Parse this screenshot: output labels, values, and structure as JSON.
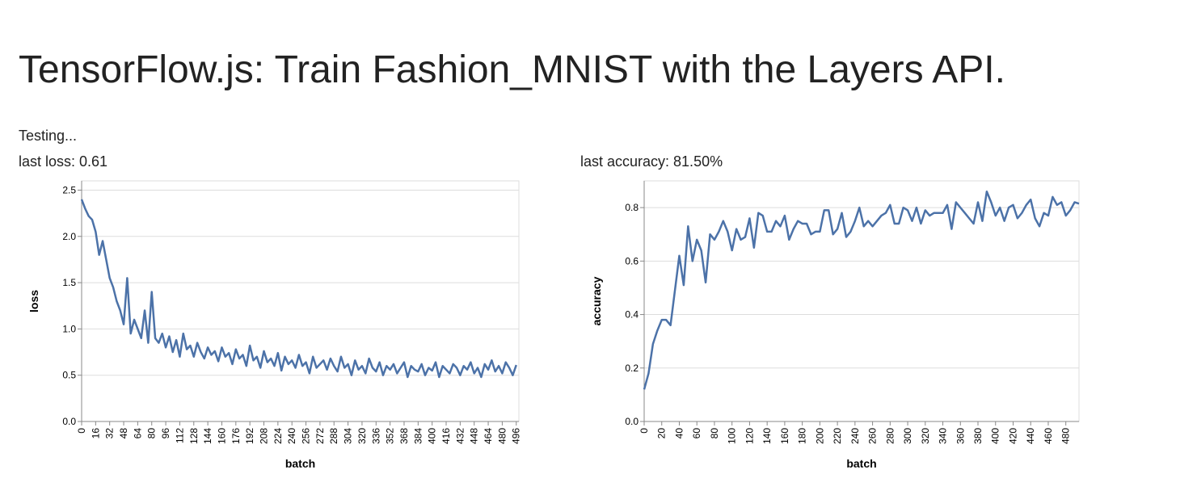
{
  "title": "TensorFlow.js: Train Fashion_MNIST with the Layers API.",
  "status": "Testing...",
  "chart_data": [
    {
      "type": "line",
      "caption": "last loss: 0.61",
      "xlabel": "batch",
      "ylabel": "loss",
      "color": "#4c72a8",
      "grid": true,
      "xlim": [
        0,
        499
      ],
      "ylim": [
        0,
        2.6
      ],
      "xticks": [
        0,
        16,
        32,
        48,
        64,
        80,
        96,
        112,
        128,
        144,
        160,
        176,
        192,
        208,
        224,
        240,
        256,
        272,
        288,
        304,
        320,
        336,
        352,
        368,
        384,
        400,
        416,
        432,
        448,
        464,
        480,
        496
      ],
      "yticks": [
        {
          "value": 0,
          "label": "0.0"
        },
        0.5,
        {
          "value": 1,
          "label": "1.0"
        },
        1.5,
        {
          "value": 2,
          "label": "2.0"
        },
        2.5
      ],
      "x": [
        0,
        4,
        8,
        12,
        16,
        20,
        24,
        28,
        32,
        36,
        40,
        44,
        48,
        52,
        56,
        60,
        64,
        68,
        72,
        76,
        80,
        84,
        88,
        92,
        96,
        100,
        104,
        108,
        112,
        116,
        120,
        124,
        128,
        132,
        136,
        140,
        144,
        148,
        152,
        156,
        160,
        164,
        168,
        172,
        176,
        180,
        184,
        188,
        192,
        196,
        200,
        204,
        208,
        212,
        216,
        220,
        224,
        228,
        232,
        236,
        240,
        244,
        248,
        252,
        256,
        260,
        264,
        268,
        272,
        276,
        280,
        284,
        288,
        292,
        296,
        300,
        304,
        308,
        312,
        316,
        320,
        324,
        328,
        332,
        336,
        340,
        344,
        348,
        352,
        356,
        360,
        364,
        368,
        372,
        376,
        380,
        384,
        388,
        392,
        396,
        400,
        404,
        408,
        412,
        416,
        420,
        424,
        428,
        432,
        436,
        440,
        444,
        448,
        452,
        456,
        460,
        464,
        468,
        472,
        476,
        480,
        484,
        488,
        492,
        496
      ],
      "values": [
        2.4,
        2.3,
        2.22,
        2.18,
        2.05,
        1.8,
        1.95,
        1.75,
        1.55,
        1.45,
        1.3,
        1.2,
        1.05,
        1.55,
        0.95,
        1.1,
        1.0,
        0.9,
        1.2,
        0.85,
        1.4,
        0.9,
        0.85,
        0.95,
        0.8,
        0.92,
        0.75,
        0.88,
        0.7,
        0.95,
        0.78,
        0.82,
        0.7,
        0.85,
        0.75,
        0.68,
        0.8,
        0.72,
        0.76,
        0.65,
        0.8,
        0.7,
        0.74,
        0.62,
        0.78,
        0.68,
        0.72,
        0.6,
        0.82,
        0.66,
        0.7,
        0.58,
        0.76,
        0.64,
        0.68,
        0.6,
        0.74,
        0.55,
        0.7,
        0.62,
        0.66,
        0.58,
        0.72,
        0.6,
        0.64,
        0.52,
        0.7,
        0.58,
        0.62,
        0.66,
        0.56,
        0.68,
        0.6,
        0.54,
        0.7,
        0.58,
        0.62,
        0.5,
        0.66,
        0.56,
        0.6,
        0.52,
        0.68,
        0.58,
        0.54,
        0.64,
        0.5,
        0.6,
        0.56,
        0.62,
        0.52,
        0.58,
        0.64,
        0.48,
        0.6,
        0.56,
        0.54,
        0.62,
        0.5,
        0.58,
        0.55,
        0.64,
        0.48,
        0.6,
        0.56,
        0.52,
        0.62,
        0.58,
        0.5,
        0.6,
        0.56,
        0.64,
        0.52,
        0.58,
        0.48,
        0.62,
        0.56,
        0.66,
        0.54,
        0.6,
        0.52,
        0.64,
        0.58,
        0.5,
        0.61
      ]
    },
    {
      "type": "line",
      "caption": "last accuracy: 81.50%",
      "xlabel": "batch",
      "ylabel": "accuracy",
      "color": "#4c72a8",
      "grid": true,
      "xlim": [
        0,
        495
      ],
      "ylim": [
        0,
        0.9
      ],
      "xticks": [
        0,
        20,
        40,
        60,
        80,
        100,
        120,
        140,
        160,
        180,
        200,
        220,
        240,
        260,
        280,
        300,
        320,
        340,
        360,
        380,
        400,
        420,
        440,
        460,
        480
      ],
      "yticks": [
        {
          "value": 0,
          "label": "0.0"
        },
        0.2,
        0.4,
        0.6,
        0.8
      ],
      "x": [
        0,
        5,
        10,
        15,
        20,
        25,
        30,
        35,
        40,
        45,
        50,
        55,
        60,
        65,
        70,
        75,
        80,
        85,
        90,
        95,
        100,
        105,
        110,
        115,
        120,
        125,
        130,
        135,
        140,
        145,
        150,
        155,
        160,
        165,
        170,
        175,
        180,
        185,
        190,
        195,
        200,
        205,
        210,
        215,
        220,
        225,
        230,
        235,
        240,
        245,
        250,
        255,
        260,
        265,
        270,
        275,
        280,
        285,
        290,
        295,
        300,
        305,
        310,
        315,
        320,
        325,
        330,
        335,
        340,
        345,
        350,
        355,
        360,
        365,
        370,
        375,
        380,
        385,
        390,
        395,
        400,
        405,
        410,
        415,
        420,
        425,
        430,
        435,
        440,
        445,
        450,
        455,
        460,
        465,
        470,
        475,
        480,
        485,
        490,
        495
      ],
      "values": [
        0.12,
        0.18,
        0.29,
        0.34,
        0.38,
        0.38,
        0.36,
        0.49,
        0.62,
        0.51,
        0.73,
        0.6,
        0.68,
        0.64,
        0.52,
        0.7,
        0.68,
        0.71,
        0.75,
        0.71,
        0.64,
        0.72,
        0.68,
        0.69,
        0.76,
        0.65,
        0.78,
        0.77,
        0.71,
        0.71,
        0.75,
        0.73,
        0.77,
        0.68,
        0.72,
        0.75,
        0.74,
        0.74,
        0.7,
        0.71,
        0.71,
        0.79,
        0.79,
        0.7,
        0.72,
        0.78,
        0.69,
        0.71,
        0.75,
        0.8,
        0.73,
        0.75,
        0.73,
        0.75,
        0.77,
        0.78,
        0.81,
        0.74,
        0.74,
        0.8,
        0.79,
        0.75,
        0.8,
        0.74,
        0.79,
        0.77,
        0.78,
        0.78,
        0.78,
        0.81,
        0.72,
        0.82,
        0.8,
        0.78,
        0.76,
        0.74,
        0.82,
        0.75,
        0.86,
        0.82,
        0.77,
        0.8,
        0.75,
        0.8,
        0.81,
        0.76,
        0.78,
        0.81,
        0.83,
        0.76,
        0.73,
        0.78,
        0.77,
        0.84,
        0.81,
        0.82,
        0.77,
        0.79,
        0.82,
        0.815
      ]
    }
  ]
}
